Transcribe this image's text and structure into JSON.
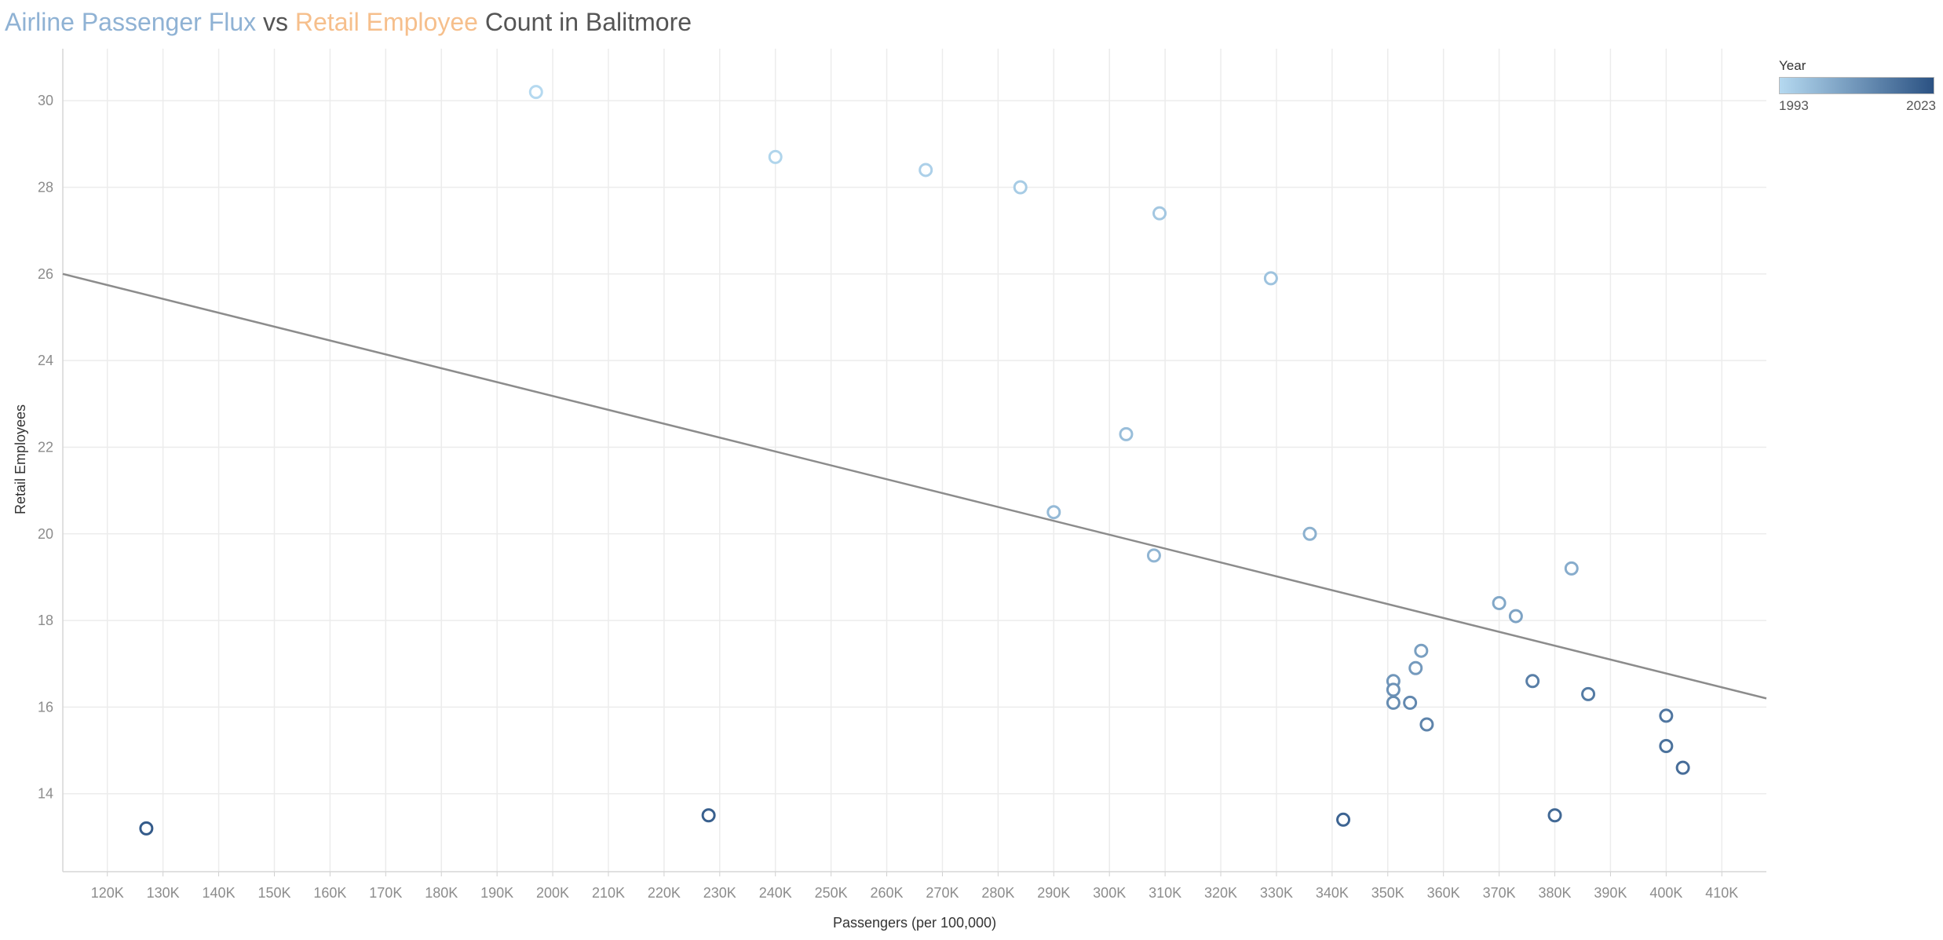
{
  "title": {
    "part1": "Airline Passenger Flux",
    "part2": " vs ",
    "part3": "Retail Employee",
    "part4": " Count in Balitmore"
  },
  "colors": {
    "title_passenger": "#8fb2d4",
    "title_retail": "#f6bf8c",
    "trend_line": "#8c8c8c",
    "year_low": "#b5d9f0",
    "year_high": "#2b5283"
  },
  "legend": {
    "title": "Year",
    "min_label": "1993",
    "max_label": "2023",
    "placement": "top-right"
  },
  "chart_data": {
    "type": "scatter",
    "xlabel": "Passengers (per 100,000)",
    "ylabel": "Retail Employees",
    "xlim": [
      112000,
      418000
    ],
    "ylim": [
      12.2,
      31.2
    ],
    "x_ticks": [
      120000,
      130000,
      140000,
      150000,
      160000,
      170000,
      180000,
      190000,
      200000,
      210000,
      220000,
      230000,
      240000,
      250000,
      260000,
      270000,
      280000,
      290000,
      300000,
      310000,
      320000,
      330000,
      340000,
      350000,
      360000,
      370000,
      380000,
      390000,
      400000,
      410000
    ],
    "x_tick_labels": [
      "120K",
      "130K",
      "140K",
      "150K",
      "160K",
      "170K",
      "180K",
      "190K",
      "200K",
      "210K",
      "220K",
      "230K",
      "240K",
      "250K",
      "260K",
      "270K",
      "280K",
      "290K",
      "300K",
      "310K",
      "320K",
      "330K",
      "340K",
      "350K",
      "360K",
      "370K",
      "380K",
      "390K",
      "400K",
      "410K"
    ],
    "y_ticks": [
      14,
      16,
      18,
      20,
      22,
      24,
      26,
      28,
      30
    ],
    "y_tick_labels": [
      "14",
      "16",
      "18",
      "20",
      "22",
      "24",
      "26",
      "28",
      "30"
    ],
    "grid": true,
    "trend_line": {
      "x": [
        112000,
        418000
      ],
      "y": [
        26.0,
        16.2
      ]
    },
    "color_by": "Year",
    "points": [
      {
        "x": 197000,
        "y": 30.2,
        "year": 1993
      },
      {
        "x": 240000,
        "y": 28.7,
        "year": 1994
      },
      {
        "x": 267000,
        "y": 28.4,
        "year": 1995
      },
      {
        "x": 284000,
        "y": 28.0,
        "year": 1996
      },
      {
        "x": 309000,
        "y": 27.4,
        "year": 1997
      },
      {
        "x": 329000,
        "y": 25.9,
        "year": 1998
      },
      {
        "x": 303000,
        "y": 22.3,
        "year": 1999
      },
      {
        "x": 290000,
        "y": 20.5,
        "year": 2000
      },
      {
        "x": 308000,
        "y": 19.5,
        "year": 2001
      },
      {
        "x": 336000,
        "y": 20.0,
        "year": 2002
      },
      {
        "x": 383000,
        "y": 19.2,
        "year": 2003
      },
      {
        "x": 370000,
        "y": 18.4,
        "year": 2004
      },
      {
        "x": 373000,
        "y": 18.1,
        "year": 2005
      },
      {
        "x": 356000,
        "y": 17.3,
        "year": 2006
      },
      {
        "x": 355000,
        "y": 16.9,
        "year": 2007
      },
      {
        "x": 351000,
        "y": 16.6,
        "year": 2008
      },
      {
        "x": 351000,
        "y": 16.4,
        "year": 2009
      },
      {
        "x": 351000,
        "y": 16.1,
        "year": 2010
      },
      {
        "x": 354000,
        "y": 16.1,
        "year": 2011
      },
      {
        "x": 357000,
        "y": 15.6,
        "year": 2012
      },
      {
        "x": 376000,
        "y": 16.6,
        "year": 2013
      },
      {
        "x": 386000,
        "y": 16.3,
        "year": 2014
      },
      {
        "x": 400000,
        "y": 15.8,
        "year": 2015
      },
      {
        "x": 400000,
        "y": 15.1,
        "year": 2016
      },
      {
        "x": 403000,
        "y": 14.6,
        "year": 2017
      },
      {
        "x": 380000,
        "y": 13.5,
        "year": 2018
      },
      {
        "x": 342000,
        "y": 13.4,
        "year": 2019
      },
      {
        "x": 228000,
        "y": 13.5,
        "year": 2020
      },
      {
        "x": 127000,
        "y": 13.2,
        "year": 2021
      }
    ]
  }
}
